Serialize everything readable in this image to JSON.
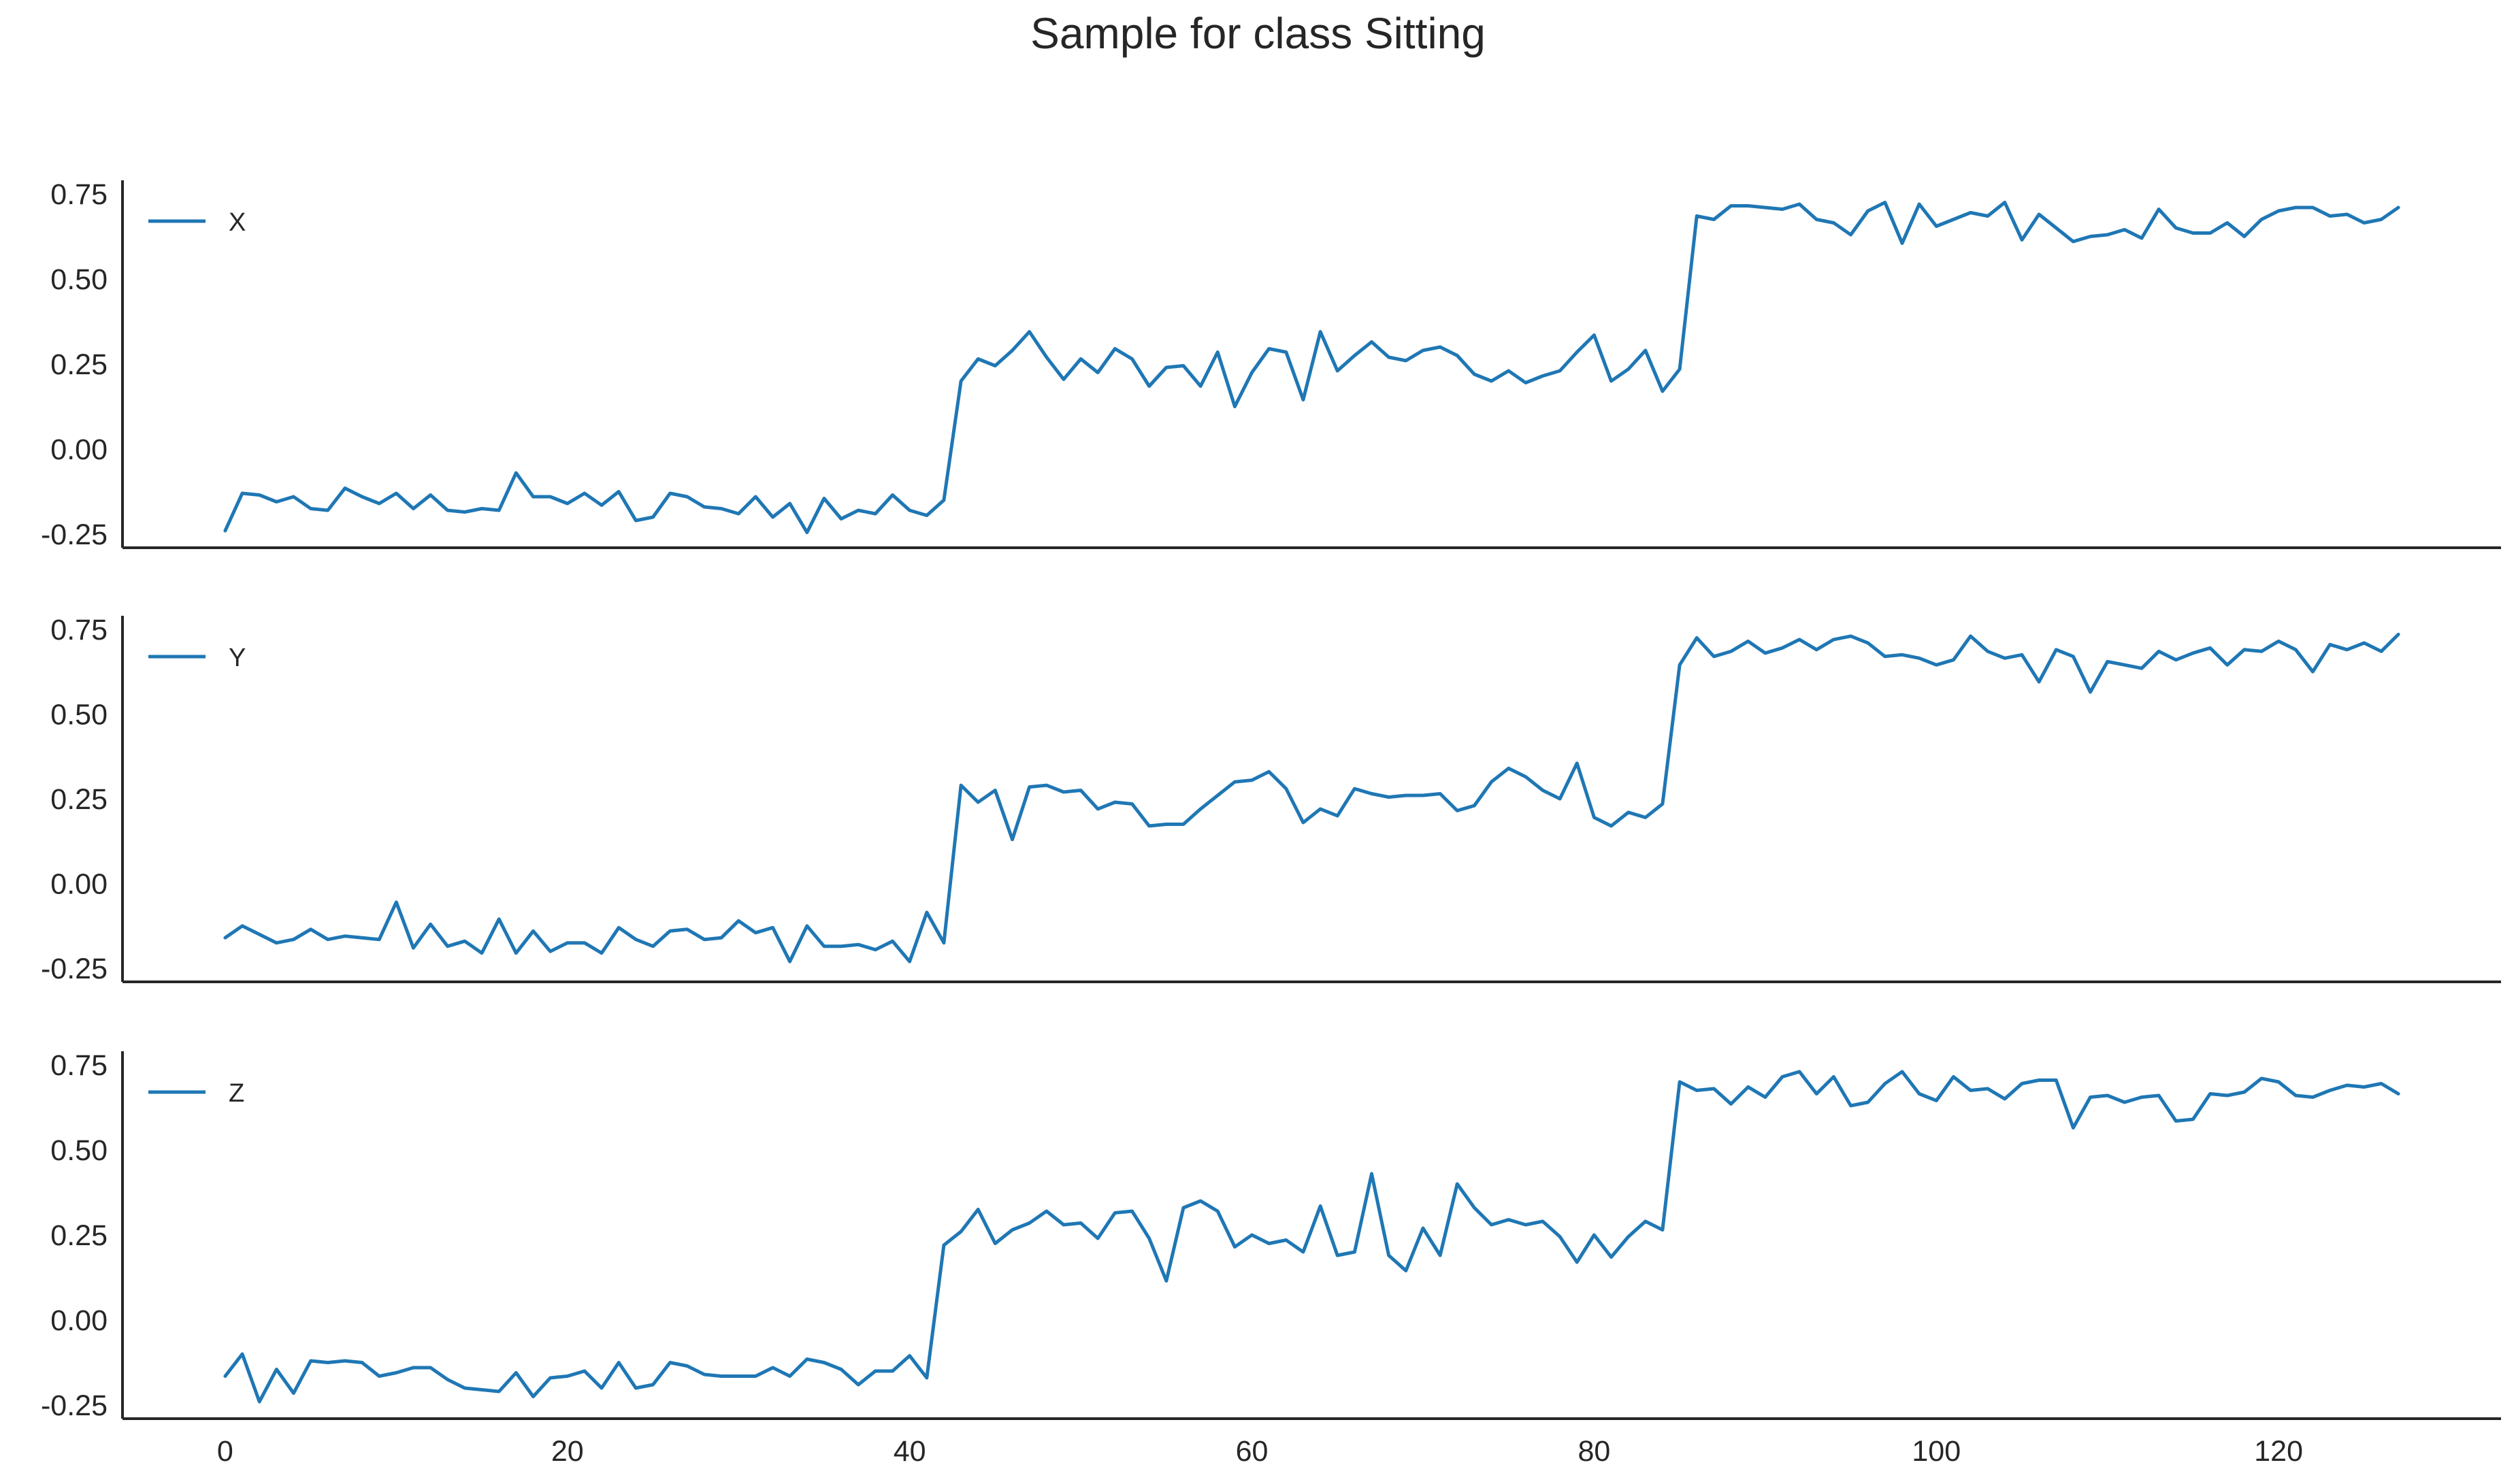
{
  "chart_data": {
    "type": "line",
    "title": "Sample for class Sitting",
    "xlabel": "",
    "ylabel": "",
    "xlim": [
      -6,
      133
    ],
    "ylim": [
      -0.29,
      0.79
    ],
    "xticks": [
      0,
      20,
      40,
      60,
      80,
      100,
      120
    ],
    "yticks": [
      -0.25,
      0.0,
      0.25,
      0.5,
      0.75
    ],
    "ytick_labels": [
      "-0.25",
      "0.00",
      "0.25",
      "0.50",
      "0.75"
    ],
    "grid": false,
    "sharex": true,
    "legend_placement": "upper left",
    "line_color": "#1f77b4",
    "panels": [
      {
        "series_name": "X",
        "x_start": 0,
        "values": [
          -0.24,
          -0.13,
          -0.135,
          -0.155,
          -0.14,
          -0.175,
          -0.18,
          -0.115,
          -0.14,
          -0.16,
          -0.13,
          -0.175,
          -0.135,
          -0.18,
          -0.185,
          -0.175,
          -0.18,
          -0.07,
          -0.14,
          -0.14,
          -0.16,
          -0.13,
          -0.165,
          -0.125,
          -0.21,
          -0.2,
          -0.13,
          -0.14,
          -0.17,
          -0.175,
          -0.19,
          -0.14,
          -0.2,
          -0.16,
          -0.245,
          -0.145,
          -0.205,
          -0.18,
          -0.19,
          -0.135,
          -0.18,
          -0.195,
          -0.15,
          0.2,
          0.265,
          0.245,
          0.29,
          0.345,
          0.27,
          0.205,
          0.265,
          0.225,
          0.295,
          0.265,
          0.185,
          0.24,
          0.245,
          0.185,
          0.285,
          0.125,
          0.225,
          0.295,
          0.285,
          0.145,
          0.345,
          0.23,
          0.275,
          0.315,
          0.27,
          0.26,
          0.29,
          0.3,
          0.275,
          0.22,
          0.2,
          0.23,
          0.195,
          0.215,
          0.23,
          0.285,
          0.335,
          0.2,
          0.235,
          0.29,
          0.17,
          0.235,
          0.685,
          0.675,
          0.715,
          0.715,
          0.71,
          0.705,
          0.72,
          0.675,
          0.665,
          0.63,
          0.7,
          0.725,
          0.605,
          0.72,
          0.655,
          0.675,
          0.695,
          0.685,
          0.725,
          0.615,
          0.69,
          0.65,
          0.61,
          0.625,
          0.63,
          0.645,
          0.62,
          0.705,
          0.65,
          0.635,
          0.635,
          0.665,
          0.625,
          0.675,
          0.7,
          0.71,
          0.71,
          0.685,
          0.69,
          0.665,
          0.675,
          0.71
        ]
      },
      {
        "series_name": "Y",
        "x_start": 0,
        "values": [
          -0.16,
          -0.125,
          -0.15,
          -0.175,
          -0.165,
          -0.135,
          -0.165,
          -0.155,
          -0.16,
          -0.165,
          -0.055,
          -0.19,
          -0.12,
          -0.185,
          -0.17,
          -0.205,
          -0.105,
          -0.205,
          -0.14,
          -0.2,
          -0.175,
          -0.175,
          -0.205,
          -0.13,
          -0.165,
          -0.185,
          -0.14,
          -0.135,
          -0.165,
          -0.16,
          -0.11,
          -0.145,
          -0.13,
          -0.23,
          -0.125,
          -0.185,
          -0.185,
          -0.18,
          -0.195,
          -0.17,
          -0.23,
          -0.085,
          -0.175,
          0.29,
          0.24,
          0.275,
          0.13,
          0.285,
          0.29,
          0.27,
          0.275,
          0.22,
          0.24,
          0.235,
          0.17,
          0.175,
          0.175,
          0.22,
          0.26,
          0.3,
          0.305,
          0.33,
          0.28,
          0.18,
          0.22,
          0.2,
          0.28,
          0.265,
          0.255,
          0.26,
          0.26,
          0.265,
          0.215,
          0.23,
          0.3,
          0.34,
          0.315,
          0.275,
          0.25,
          0.355,
          0.195,
          0.17,
          0.21,
          0.195,
          0.235,
          0.645,
          0.725,
          0.67,
          0.685,
          0.715,
          0.68,
          0.695,
          0.72,
          0.69,
          0.72,
          0.73,
          0.71,
          0.67,
          0.675,
          0.665,
          0.645,
          0.66,
          0.73,
          0.685,
          0.665,
          0.675,
          0.595,
          0.69,
          0.67,
          0.565,
          0.655,
          0.645,
          0.635,
          0.685,
          0.66,
          0.68,
          0.695,
          0.645,
          0.69,
          0.685,
          0.715,
          0.69,
          0.625,
          0.705,
          0.69,
          0.71,
          0.685,
          0.735
        ]
      },
      {
        "series_name": "Z",
        "x_start": 0,
        "values": [
          -0.165,
          -0.1,
          -0.24,
          -0.145,
          -0.215,
          -0.12,
          -0.125,
          -0.12,
          -0.125,
          -0.165,
          -0.155,
          -0.14,
          -0.14,
          -0.175,
          -0.2,
          -0.205,
          -0.21,
          -0.155,
          -0.225,
          -0.17,
          -0.165,
          -0.15,
          -0.2,
          -0.125,
          -0.2,
          -0.19,
          -0.125,
          -0.135,
          -0.16,
          -0.165,
          -0.165,
          -0.165,
          -0.14,
          -0.165,
          -0.115,
          -0.125,
          -0.145,
          -0.19,
          -0.15,
          -0.15,
          -0.105,
          -0.17,
          0.22,
          0.26,
          0.325,
          0.225,
          0.265,
          0.285,
          0.32,
          0.28,
          0.285,
          0.24,
          0.315,
          0.32,
          0.24,
          0.115,
          0.33,
          0.35,
          0.32,
          0.215,
          0.25,
          0.225,
          0.235,
          0.2,
          0.335,
          0.19,
          0.2,
          0.43,
          0.19,
          0.145,
          0.27,
          0.19,
          0.4,
          0.33,
          0.28,
          0.295,
          0.28,
          0.29,
          0.245,
          0.17,
          0.25,
          0.185,
          0.245,
          0.29,
          0.265,
          0.7,
          0.675,
          0.68,
          0.635,
          0.685,
          0.655,
          0.715,
          0.73,
          0.665,
          0.715,
          0.63,
          0.64,
          0.695,
          0.73,
          0.665,
          0.645,
          0.715,
          0.675,
          0.68,
          0.65,
          0.695,
          0.705,
          0.705,
          0.565,
          0.655,
          0.66,
          0.64,
          0.655,
          0.66,
          0.585,
          0.59,
          0.665,
          0.66,
          0.67,
          0.71,
          0.7,
          0.66,
          0.655,
          0.675,
          0.69,
          0.685,
          0.695,
          0.665
        ]
      }
    ]
  }
}
